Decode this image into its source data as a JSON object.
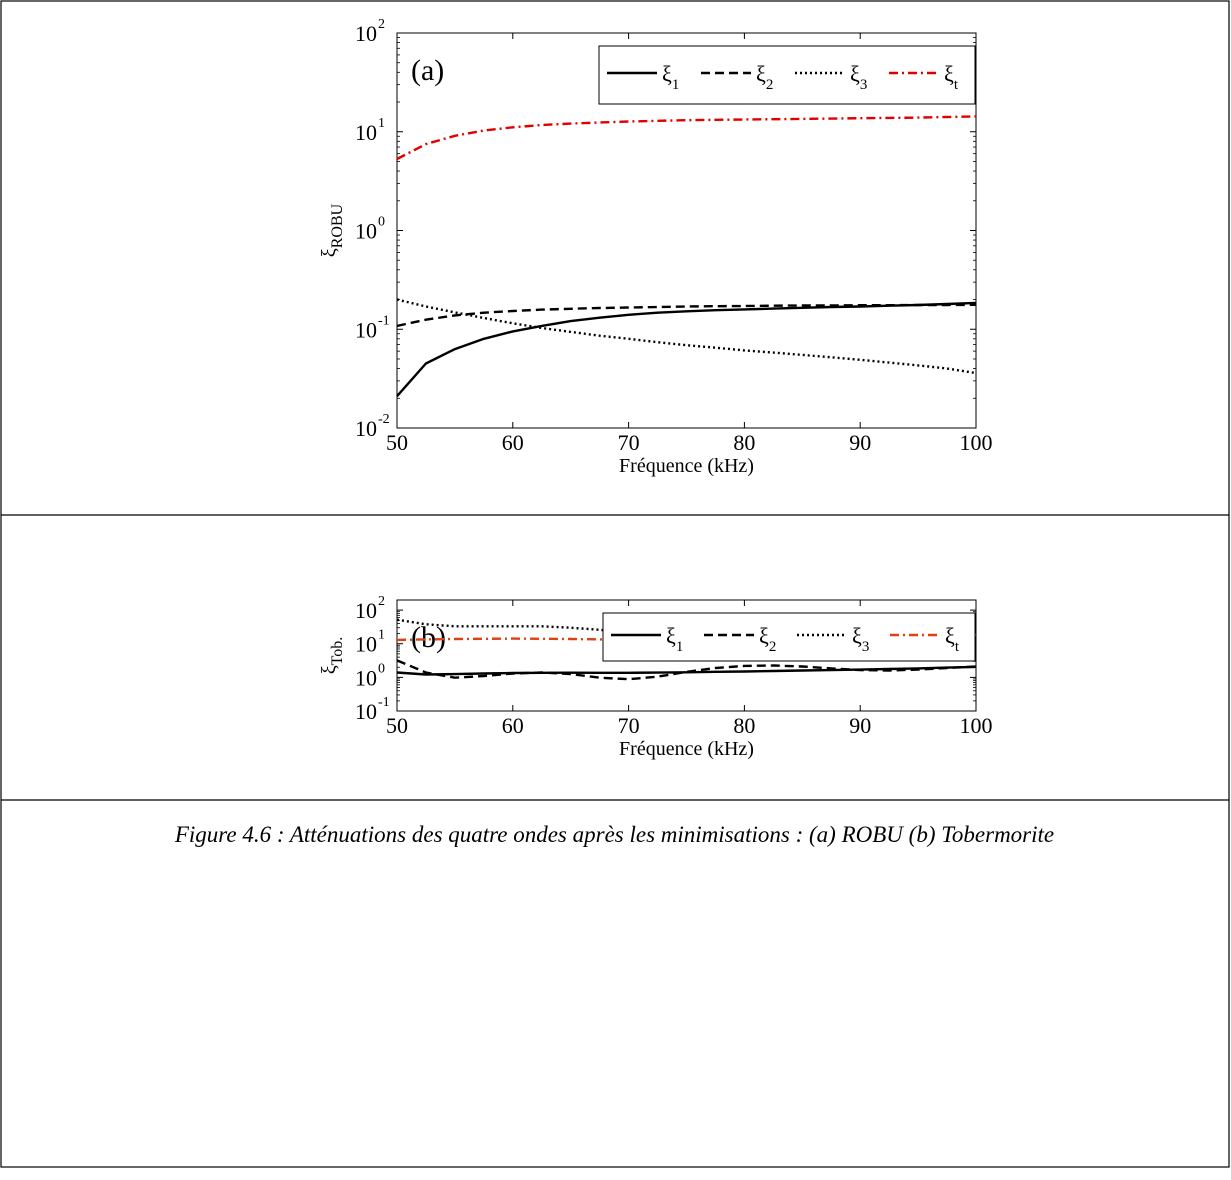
{
  "chart_data": [
    {
      "type": "line",
      "panel_label": "(a)",
      "ylabel_base": "ξ",
      "ylabel_sub": "ROBU",
      "xlabel": "Fréquence (kHz)",
      "xlim": [
        50,
        100
      ],
      "ylim": [
        0.01,
        100
      ],
      "yscale": "log",
      "xticks": [
        "50",
        "60",
        "70",
        "80",
        "90",
        "100"
      ],
      "xtick_values": [
        50,
        60,
        70,
        80,
        90,
        100
      ],
      "yticks": [
        {
          "base": "10",
          "exp": "-2",
          "value": 0.01
        },
        {
          "base": "10",
          "exp": "-1",
          "value": 0.1
        },
        {
          "base": "10",
          "exp": "0",
          "value": 1
        },
        {
          "base": "10",
          "exp": "1",
          "value": 10
        },
        {
          "base": "10",
          "exp": "2",
          "value": 100
        }
      ],
      "legend_position": "top-right",
      "x": [
        50,
        52.5,
        55,
        57.5,
        60,
        62.5,
        65,
        67.5,
        70,
        72.5,
        75,
        77.5,
        80,
        82.5,
        85,
        87.5,
        90,
        92.5,
        95,
        97.5,
        100
      ],
      "series": [
        {
          "name_base": "ξ",
          "name_sub": "1",
          "color": "#000000",
          "dash": "solid",
          "values": [
            0.021,
            0.045,
            0.063,
            0.08,
            0.095,
            0.108,
            0.121,
            0.131,
            0.14,
            0.147,
            0.152,
            0.156,
            0.159,
            0.162,
            0.165,
            0.168,
            0.17,
            0.173,
            0.176,
            0.18,
            0.185
          ]
        },
        {
          "name_base": "ξ",
          "name_sub": "2",
          "color": "#000000",
          "dash": "dashed",
          "values": [
            0.108,
            0.125,
            0.138,
            0.147,
            0.153,
            0.158,
            0.161,
            0.164,
            0.166,
            0.168,
            0.17,
            0.171,
            0.172,
            0.173,
            0.174,
            0.174,
            0.175,
            0.175,
            0.176,
            0.176,
            0.177
          ]
        },
        {
          "name_base": "ξ",
          "name_sub": "3",
          "color": "#000000",
          "dash": "dotted",
          "values": [
            0.2,
            0.17,
            0.148,
            0.13,
            0.115,
            0.103,
            0.094,
            0.086,
            0.08,
            0.074,
            0.069,
            0.065,
            0.061,
            0.058,
            0.055,
            0.052,
            0.049,
            0.046,
            0.043,
            0.04,
            0.036
          ]
        },
        {
          "name_base": "ξ",
          "name_sub": "t",
          "color": "#e00000",
          "dash": "dashdot",
          "values": [
            5.3,
            7.5,
            9.1,
            10.3,
            11.1,
            11.7,
            12.1,
            12.4,
            12.7,
            12.9,
            13.1,
            13.2,
            13.3,
            13.4,
            13.5,
            13.6,
            13.7,
            13.8,
            13.9,
            14.1,
            14.3
          ]
        }
      ]
    },
    {
      "type": "line",
      "panel_label": "(b)",
      "ylabel_base": "ξ",
      "ylabel_sub": "Tob.",
      "xlabel": "Fréquence (kHz)",
      "xlim": [
        50,
        100
      ],
      "ylim": [
        0.1,
        200
      ],
      "yscale": "log",
      "xticks": [
        "50",
        "60",
        "70",
        "80",
        "90",
        "100"
      ],
      "xtick_values": [
        50,
        60,
        70,
        80,
        90,
        100
      ],
      "yticks": [
        {
          "base": "10",
          "exp": "-1",
          "value": 0.1
        },
        {
          "base": "10",
          "exp": "0",
          "value": 1
        },
        {
          "base": "10",
          "exp": "1",
          "value": 10
        },
        {
          "base": "10",
          "exp": "2",
          "value": 100
        }
      ],
      "legend_position": "top-right",
      "x": [
        50,
        52.5,
        55,
        57.5,
        60,
        62.5,
        65,
        67.5,
        70,
        72.5,
        75,
        77.5,
        80,
        82.5,
        85,
        87.5,
        90,
        92.5,
        95,
        97.5,
        100
      ],
      "series": [
        {
          "name_base": "ξ",
          "name_sub": "1",
          "color": "#000000",
          "dash": "solid",
          "values": [
            1.4,
            1.22,
            1.25,
            1.3,
            1.35,
            1.37,
            1.38,
            1.37,
            1.37,
            1.39,
            1.42,
            1.46,
            1.5,
            1.55,
            1.6,
            1.65,
            1.7,
            1.77,
            1.85,
            1.95,
            2.05
          ]
        },
        {
          "name_base": "ξ",
          "name_sub": "2",
          "color": "#000000",
          "dash": "dashed",
          "values": [
            3.2,
            1.4,
            0.98,
            1.1,
            1.3,
            1.4,
            1.25,
            0.98,
            0.88,
            1.05,
            1.45,
            1.9,
            2.2,
            2.25,
            2.1,
            1.85,
            1.65,
            1.6,
            1.7,
            1.9,
            2.1
          ]
        },
        {
          "name_base": "ξ",
          "name_sub": "3",
          "color": "#000000",
          "dash": "dotted",
          "values": [
            52,
            38,
            33,
            33,
            33,
            33,
            30,
            26,
            21,
            17,
            13,
            10,
            8.8,
            8.9,
            10.5,
            13,
            16.5,
            20,
            22.5,
            24,
            25
          ]
        },
        {
          "name_base": "ξ",
          "name_sub": "t",
          "color": "#e04010",
          "dash": "dashdot",
          "values": [
            13.0,
            13.5,
            13.8,
            14.0,
            14.2,
            14.0,
            13.8,
            13.5,
            13.3,
            13.1,
            12.9,
            12.8,
            12.7,
            12.7,
            12.9,
            13.2,
            13.7,
            14.5,
            15.5,
            17.0,
            18.5
          ]
        }
      ]
    }
  ],
  "caption": "Figure 4.6 : Atténuations des quatre ondes après les minimisations : (a) ROBU (b) Tobermorite"
}
